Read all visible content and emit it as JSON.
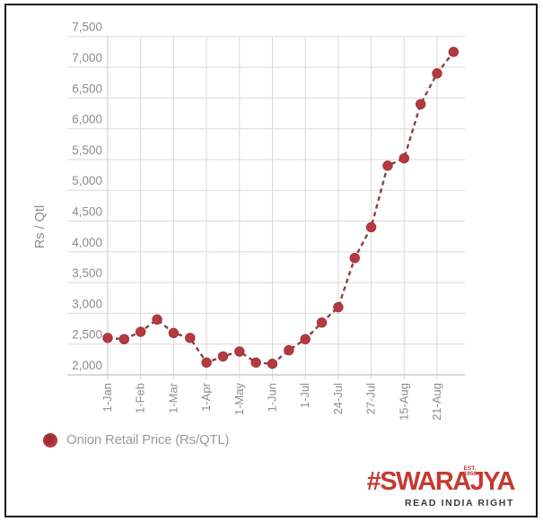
{
  "chart_data": {
    "type": "line",
    "title": "",
    "xlabel": "",
    "ylabel": "Rs / Qtl",
    "ylim": [
      2000,
      7500
    ],
    "ytick_values": [
      2000,
      2500,
      3000,
      3500,
      4000,
      4500,
      5000,
      5500,
      6000,
      6500,
      7000,
      7500
    ],
    "ytick_labels": [
      "2,000",
      "2,500",
      "3,000",
      "3,500",
      "4,000",
      "4,500",
      "5,000",
      "5,500",
      "6,000",
      "6,500",
      "7,000",
      "7,500"
    ],
    "xtick_labels": [
      "1-Jan",
      "1-Feb",
      "1-Mar",
      "1-Apr",
      "1-May",
      "1-Jun",
      "1-Jul",
      "24-Jul",
      "27-Jul",
      "15-Aug",
      "21-Aug"
    ],
    "xticks_every_n_points": 2,
    "grid": true,
    "legend_position": "bottom-left",
    "series": [
      {
        "name": "Onion Retail Price (Rs/QTL)",
        "marker": "circle",
        "line_style": "dashed",
        "values": [
          2600,
          2580,
          2700,
          2900,
          2680,
          2600,
          2200,
          2300,
          2380,
          2200,
          2180,
          2400,
          2580,
          2850,
          3100,
          3900,
          4400,
          5400,
          5520,
          6400,
          6900,
          7250
        ]
      }
    ],
    "colors": {
      "marker": "#b53a3f",
      "marker_edge": "#a03338",
      "line": "#8c4043",
      "grid": "#d9d9d9",
      "axis_line": "#c2c2c2",
      "axis_text": "#8d8d8d"
    }
  },
  "legend": {
    "swatch": "red-circle",
    "label": "Onion Retail Price (Rs/QTL)",
    "color": "#b53a3f"
  },
  "branding": {
    "logo": "#SWARAJYA",
    "est": "EST.\n1956",
    "tagline": "READ INDIA RIGHT",
    "logo_color": "#c43a32",
    "tagline_color": "#3a3a3a"
  },
  "frame_color": "#141414"
}
